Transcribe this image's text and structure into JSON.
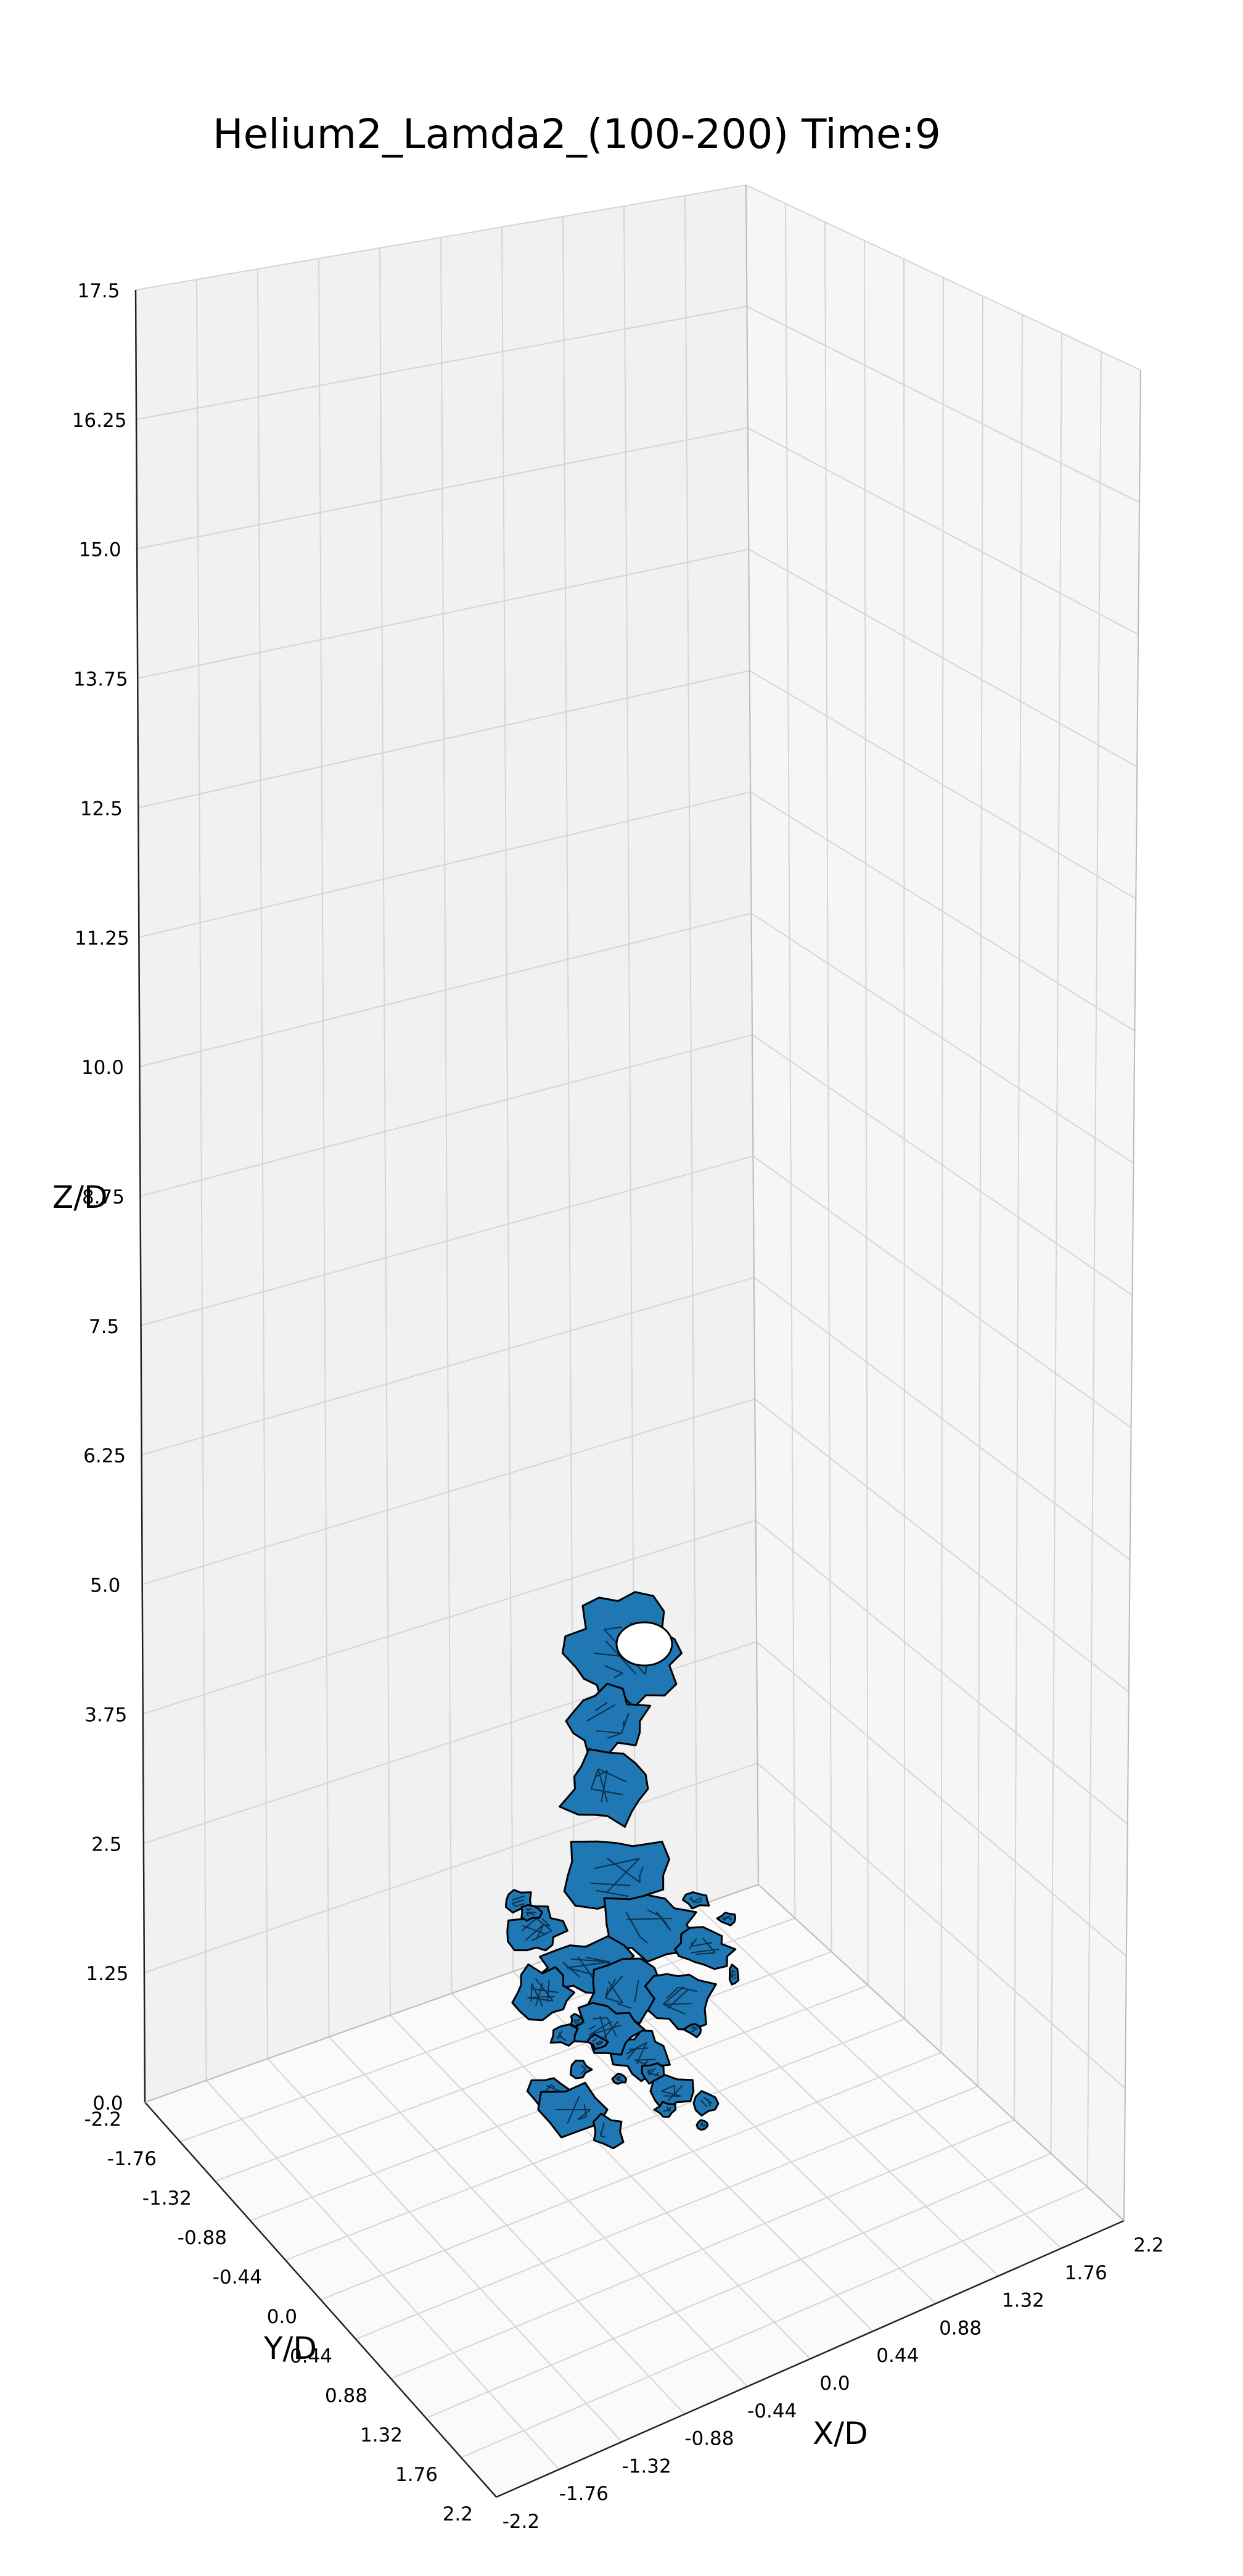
{
  "chart_data": {
    "type": "surface3d",
    "title": "Helium2_Lamda2_(100-200) Time:9",
    "xlabel": "X/D",
    "ylabel": "Y/D",
    "zlabel": "Z/D",
    "x_ticks": [
      "-2.2",
      "-1.76",
      "-1.32",
      "-0.88",
      "-0.44",
      "0.0",
      "0.44",
      "0.88",
      "1.32",
      "1.76",
      "2.2"
    ],
    "y_ticks": [
      "-2.2",
      "-1.76",
      "-1.32",
      "-0.88",
      "-0.44",
      "0.0",
      "0.44",
      "0.88",
      "1.32",
      "1.76",
      "2.2"
    ],
    "z_ticks": [
      "0.0",
      "1.25",
      "2.5",
      "3.75",
      "5.0",
      "6.25",
      "7.5",
      "8.75",
      "10.0",
      "11.25",
      "12.5",
      "13.75",
      "15.0",
      "16.25",
      "17.5"
    ],
    "xlim": [
      -2.2,
      2.2
    ],
    "ylim": [
      -2.2,
      2.2
    ],
    "zlim": [
      0,
      17.5
    ],
    "grid": true,
    "surface_color": "#1f77b4",
    "edge_color": "#000000",
    "pane_colors": {
      "left": "#f1f1f1",
      "back": "#f6f6f6",
      "floor": "#fafafa"
    },
    "grid_color": "#d5d5d5"
  }
}
